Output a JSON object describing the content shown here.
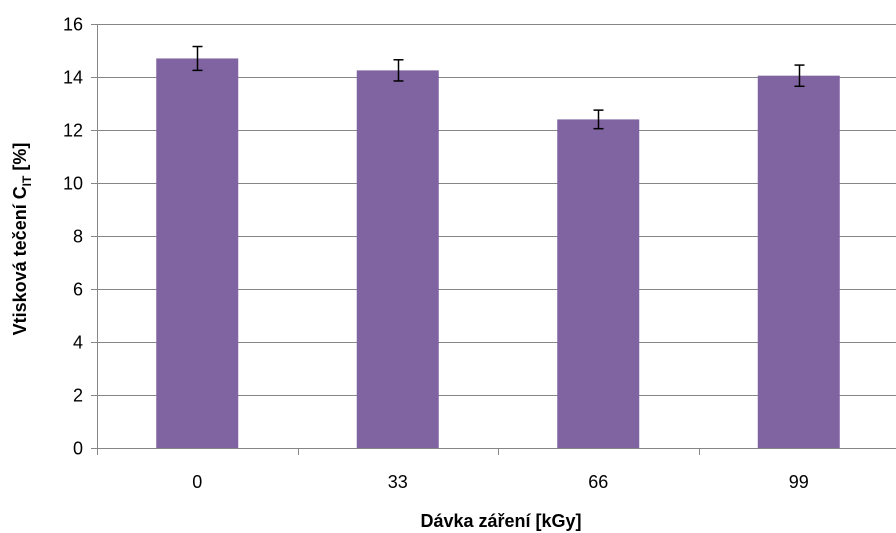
{
  "chart_data": {
    "type": "bar",
    "categories": [
      "0",
      "33",
      "66",
      "99"
    ],
    "series": [
      {
        "values": [
          14.7,
          14.25,
          12.4,
          14.05
        ],
        "errors": [
          0.45,
          0.4,
          0.35,
          0.4
        ]
      }
    ],
    "xlabel": "Dávka záření [kGy]",
    "ylabel": {
      "main": "Vtisková tečení C",
      "subscript": "IT",
      "unit": " [%]"
    },
    "ylim": [
      0,
      16
    ],
    "yticks": [
      "0",
      "2",
      "4",
      "6",
      "8",
      "10",
      "12",
      "14",
      "16"
    ],
    "grid": true,
    "legend": "none",
    "colors": {
      "bar": "#8064A2",
      "grid": "#868686",
      "axis": "#868686",
      "error_bar": "#000000"
    }
  }
}
